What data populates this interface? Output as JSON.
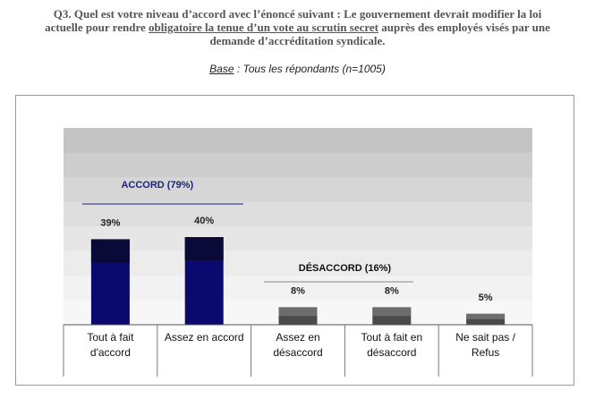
{
  "question": {
    "line1": "Q3. Quel est votre niveau d’accord avec l’énoncé suivant : Le gouvernement devrait modifier la loi",
    "line2_before": "actuelle pour rendre ",
    "line2_underlined": "obligatoire la tenue d’un vote au scrutin secret",
    "line2_after": " auprès des employés visés par une",
    "line3": "demande d’accréditation syndicale."
  },
  "base": {
    "label": "Base",
    "text": " : Tous les répondants (n=1005)"
  },
  "colors": {
    "accord_bar": "#0a0a6e",
    "accord_bar_top": "#0a0a38",
    "desaccord_bar": "#4a4a4a",
    "desaccord_bar_top": "#8a8a8a",
    "accord_label": "#1a237e",
    "desaccord_label": "#111111"
  },
  "chart_data": {
    "type": "bar",
    "categories": [
      [
        "Tout à fait",
        "d'accord"
      ],
      [
        "Assez en accord"
      ],
      [
        "Assez en",
        "désaccord"
      ],
      [
        "Tout à fait en",
        "désaccord"
      ],
      [
        "Ne sait pas /",
        "Refus"
      ]
    ],
    "values": [
      39,
      40,
      8,
      8,
      5
    ],
    "value_labels": [
      "39%",
      "40%",
      "8%",
      "8%",
      "5%"
    ],
    "groups": [
      {
        "label": "ACCORD (79%)",
        "value": 79,
        "categories": [
          0,
          1
        ]
      },
      {
        "label": "DÉSACCORD (16%)",
        "value": 16,
        "categories": [
          2,
          3
        ]
      }
    ],
    "ylim": [
      0,
      80
    ]
  }
}
